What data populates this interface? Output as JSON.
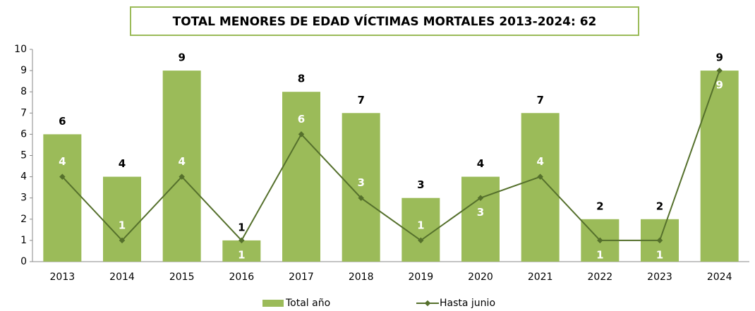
{
  "chart_data": {
    "type": "bar",
    "title": "TOTAL MENORES DE EDAD VÍCTIMAS MORTALES 2013-2024: 62",
    "categories": [
      "2013",
      "2014",
      "2015",
      "2016",
      "2017",
      "2018",
      "2019",
      "2020",
      "2021",
      "2022",
      "2023",
      "2024"
    ],
    "series": [
      {
        "name": "Total año",
        "type": "bar",
        "color": "#9bbb59",
        "values": [
          6,
          4,
          9,
          1,
          8,
          7,
          3,
          4,
          7,
          2,
          2,
          9
        ]
      },
      {
        "name": "Hasta junio",
        "type": "line",
        "color": "#55702c",
        "values": [
          4,
          1,
          4,
          1,
          6,
          3,
          1,
          3,
          4,
          1,
          1,
          9
        ]
      }
    ],
    "ylim": [
      0,
      10
    ],
    "yticks": [
      0,
      1,
      2,
      3,
      4,
      5,
      6,
      7,
      8,
      9,
      10
    ],
    "grid": false,
    "legend": "bottom"
  }
}
